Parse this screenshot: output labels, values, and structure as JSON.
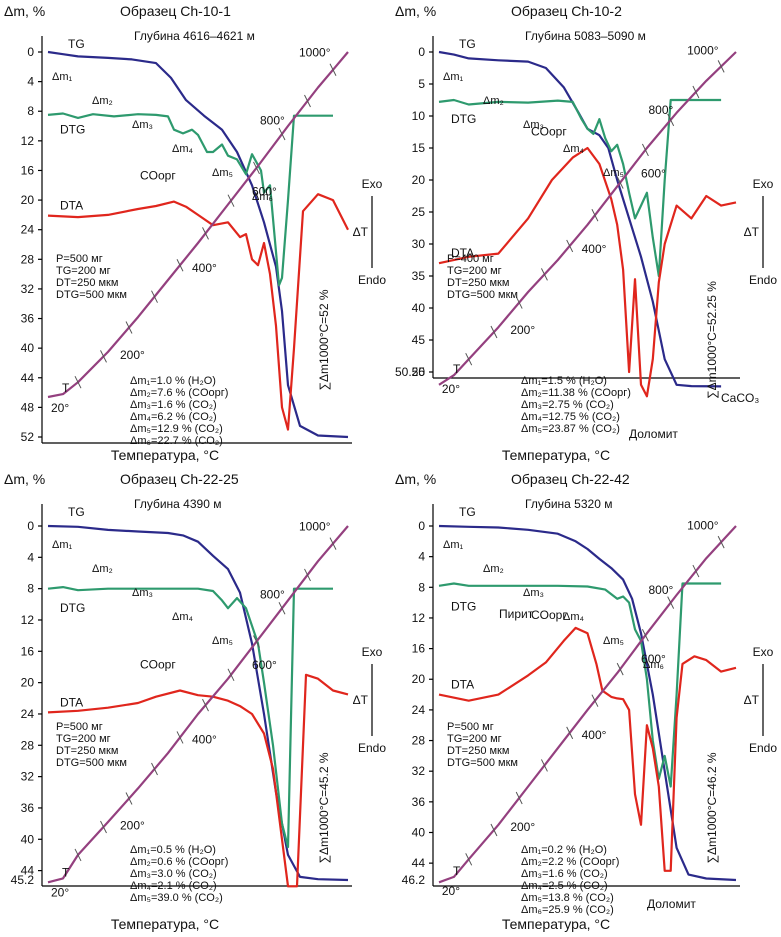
{
  "colors": {
    "TG": "#2b2a8a",
    "DTG": "#2e9a6e",
    "DTA": "#e0261d",
    "T": "#94407f"
  },
  "chart_data": [
    {
      "type": "line",
      "title": "Образец Ch-10-1",
      "depth": "Глубина 4616–4621 м",
      "ylabel": "Δm, %",
      "xlabel": "Температура, °С",
      "yticks": [
        "0",
        "4",
        "8",
        "12",
        "16",
        "20",
        "24",
        "28",
        "32",
        "36",
        "40",
        "44",
        "48",
        "52"
      ],
      "ylim": [
        0,
        52
      ],
      "curve_labels": {
        "TG": "TG",
        "DTG": "DTG",
        "DTA": "DTA",
        "T": "T",
        "CO": "COорг"
      },
      "temp_labels": [
        "20°",
        "200°",
        "400°",
        "600°",
        "800°",
        "1000°"
      ],
      "exo": "Exo",
      "endo": "Endo",
      "dT": "ΔT",
      "params": [
        "P=500 мг",
        "TG=200 мг",
        "DT=250 мкм",
        "DTG=500 мкм"
      ],
      "losses": [
        "Δm₁=1.0 % (H₂O)",
        "Δm₂=7.6 % (COорг)",
        "Δm₃=1.6 % (CO₂)",
        "Δm₄=6.2 % (CO₂)",
        "Δm₅=12.9 % (CO₂)",
        "Δm₆=22.7 % (CO₂)"
      ],
      "step_labels": [
        "Δm₁",
        "Δm₂",
        "Δm₃",
        "Δm₄",
        "Δm₅",
        "Δm₆"
      ],
      "total": "∑Δm1000°C=52 %",
      "extra_labels": [],
      "extra_tick": "",
      "series": [
        {
          "name": "TG",
          "x": [
            0,
            0.05,
            0.1,
            0.2,
            0.28,
            0.36,
            0.41,
            0.46,
            0.52,
            0.58,
            0.63,
            0.68,
            0.72,
            0.76,
            0.78,
            0.8,
            0.84,
            0.9,
            1.0
          ],
          "y": [
            0,
            0.3,
            0.6,
            0.8,
            1.0,
            1.5,
            3.5,
            6.5,
            8.6,
            10.5,
            13.5,
            18,
            23,
            29,
            35,
            45,
            50.5,
            51.8,
            52
          ]
        },
        {
          "name": "DTG",
          "x": [
            0,
            0.05,
            0.1,
            0.15,
            0.22,
            0.3,
            0.36,
            0.4,
            0.42,
            0.45,
            0.48,
            0.5,
            0.53,
            0.55,
            0.58,
            0.6,
            0.63,
            0.66,
            0.68,
            0.71,
            0.72,
            0.74,
            0.76,
            0.77,
            0.78,
            0.8,
            0.82,
            0.86,
            0.95
          ],
          "y": [
            8.5,
            8.3,
            8.9,
            8.4,
            8.7,
            8.4,
            8.5,
            8.7,
            10.5,
            11.0,
            10.5,
            11.2,
            13.5,
            13.5,
            12.5,
            14.0,
            14.5,
            16.5,
            13.8,
            16.0,
            19.0,
            18.0,
            27.0,
            31.5,
            30.5,
            20.0,
            8.6,
            8.6,
            8.6
          ]
        },
        {
          "name": "DTA",
          "x": [
            0,
            0.1,
            0.2,
            0.3,
            0.36,
            0.42,
            0.46,
            0.5,
            0.55,
            0.6,
            0.64,
            0.66,
            0.68,
            0.7,
            0.72,
            0.74,
            0.76,
            0.78,
            0.8,
            0.82,
            0.85,
            0.9,
            0.95,
            1.0
          ],
          "y": [
            22.1,
            22.3,
            22.0,
            21.2,
            20.8,
            20.2,
            20.9,
            22.0,
            23.4,
            23.0,
            25.0,
            24.6,
            28.0,
            28.8,
            25.8,
            30.0,
            37.0,
            48.0,
            51.0,
            40.0,
            21.5,
            19.2,
            20.0,
            24.0
          ]
        },
        {
          "name": "T",
          "x": [
            0,
            0.05,
            0.1,
            0.2,
            0.3,
            0.4,
            0.5,
            0.6,
            0.7,
            0.8,
            0.9,
            0.95,
            1.0
          ],
          "y": [
            46.6,
            46.2,
            44.6,
            40.5,
            35.8,
            30.8,
            25.8,
            20.6,
            15.4,
            10.0,
            4.8,
            2.4,
            0
          ]
        }
      ]
    },
    {
      "type": "line",
      "title": "Образец Ch-10-2",
      "depth": "Глубина 5083–5090 м",
      "ylabel": "Δm, %",
      "xlabel": "Температура, °С",
      "yticks": [
        "0",
        "5",
        "10",
        "15",
        "20",
        "25",
        "30",
        "35",
        "40",
        "45",
        "50"
      ],
      "ylim": [
        0,
        50
      ],
      "curve_labels": {
        "TG": "TG",
        "DTG": "DTG",
        "DTA": "DTA",
        "T": "T",
        "CO": "COорг"
      },
      "temp_labels": [
        "20°",
        "200°",
        "400°",
        "600°",
        "800°",
        "1000°"
      ],
      "exo": "Exo",
      "endo": "Endo",
      "dT": "ΔT",
      "params": [
        "P=400 мг",
        "TG=200 мг",
        "DT=250 мкм",
        "DTG=500 мкм"
      ],
      "losses": [
        "Δm₁=1.5 % (H₂O)",
        "Δm₂=11.38 % (COорг)",
        "Δm₃=2.75 % (CO₂)",
        "Δm₄=12.75 % (CO₂)",
        "Δm₅=23.87 % (CO₂)"
      ],
      "step_labels": [
        "Δm₁",
        "Δm₂",
        "Δm₃",
        "Δm₄",
        "Δm₅"
      ],
      "total": "∑Δm1000°C=52.25 %",
      "extra_labels": [
        "Доломит",
        "CaCO₃"
      ],
      "extra_tick": "50.25",
      "series": [
        {
          "name": "TG",
          "x": [
            0,
            0.05,
            0.1,
            0.2,
            0.3,
            0.36,
            0.42,
            0.47,
            0.5,
            0.54,
            0.57,
            0.6,
            0.64,
            0.68,
            0.72,
            0.76,
            0.8,
            0.85,
            0.95
          ],
          "y": [
            0,
            0.4,
            1.0,
            1.3,
            1.5,
            2.5,
            5.5,
            9.5,
            12.0,
            13.0,
            15.0,
            20.0,
            26.0,
            32.0,
            39.0,
            48.0,
            52.0,
            52.2,
            52.25
          ]
        },
        {
          "name": "DTG",
          "x": [
            0,
            0.05,
            0.1,
            0.2,
            0.3,
            0.4,
            0.45,
            0.48,
            0.5,
            0.52,
            0.54,
            0.56,
            0.58,
            0.6,
            0.62,
            0.64,
            0.66,
            0.68,
            0.7,
            0.72,
            0.74,
            0.76,
            0.78,
            0.85,
            0.95
          ],
          "y": [
            7.8,
            7.5,
            8.2,
            7.8,
            7.9,
            7.6,
            7.8,
            10.5,
            12.0,
            12.8,
            10.5,
            13.5,
            15.5,
            14.5,
            17.5,
            22.0,
            26.0,
            24.0,
            22.0,
            29.0,
            35.0,
            20.0,
            7.5,
            7.5,
            7.5
          ]
        },
        {
          "name": "DTA",
          "x": [
            0,
            0.1,
            0.2,
            0.3,
            0.38,
            0.45,
            0.5,
            0.54,
            0.58,
            0.6,
            0.62,
            0.64,
            0.66,
            0.68,
            0.7,
            0.72,
            0.74,
            0.76,
            0.8,
            0.85,
            0.9,
            0.95,
            1.0
          ],
          "y": [
            33.0,
            32.0,
            31.5,
            26.0,
            20.0,
            16.5,
            15.0,
            17.5,
            23.0,
            27.0,
            34.0,
            50.0,
            35.5,
            52.0,
            53.8,
            48.0,
            36.0,
            30.0,
            24.0,
            26.0,
            22.5,
            24.0,
            23.5
          ]
        },
        {
          "name": "T",
          "x": [
            0,
            0.05,
            0.1,
            0.2,
            0.3,
            0.4,
            0.5,
            0.6,
            0.7,
            0.8,
            0.9,
            1.0
          ],
          "y": [
            52.0,
            50.5,
            48.0,
            43.0,
            37.5,
            32.5,
            27.0,
            21.0,
            15.0,
            9.5,
            4.5,
            0
          ]
        }
      ]
    },
    {
      "type": "line",
      "title": "Образец Ch-22-25",
      "depth": "Глубина 4390 м",
      "ylabel": "Δm, %",
      "xlabel": "Температура, °С",
      "yticks": [
        "0",
        "4",
        "8",
        "12",
        "16",
        "20",
        "24",
        "28",
        "32",
        "36",
        "40",
        "44"
      ],
      "ylim": [
        0,
        45.2
      ],
      "curve_labels": {
        "TG": "TG",
        "DTG": "DTG",
        "DTA": "DTA",
        "T": "T",
        "CO": "COорг"
      },
      "temp_labels": [
        "20°",
        "200°",
        "400°",
        "600°",
        "800°",
        "1000°"
      ],
      "exo": "Exo",
      "endo": "Endo",
      "dT": "ΔT",
      "params": [
        "P=500 мг",
        "TG=200 мг",
        "DT=250 мкм",
        "DTG=500 мкм"
      ],
      "losses": [
        "Δm₁=0.5 % (H₂O)",
        "Δm₂=0.6 % (COорг)",
        "Δm₃=3.0 % (CO₂)",
        "Δm₄=2.1 % (CO₂)",
        "Δm₅=39.0 % (CO₂)"
      ],
      "step_labels": [
        "Δm₁",
        "Δm₂",
        "Δm₃",
        "Δm₄",
        "Δm₅"
      ],
      "total": "∑Δm1000°C=45.2 %",
      "extra_labels": [],
      "extra_tick": "45.2",
      "series": [
        {
          "name": "TG",
          "x": [
            0,
            0.1,
            0.2,
            0.3,
            0.4,
            0.45,
            0.5,
            0.55,
            0.6,
            0.64,
            0.68,
            0.72,
            0.76,
            0.8,
            0.84,
            0.9,
            1.0
          ],
          "y": [
            0,
            0.1,
            0.5,
            0.7,
            0.9,
            1.2,
            2.0,
            3.8,
            5.5,
            8.5,
            15.0,
            24.0,
            34.0,
            42.0,
            44.8,
            45.1,
            45.2
          ]
        },
        {
          "name": "DTG",
          "x": [
            0,
            0.05,
            0.1,
            0.2,
            0.3,
            0.4,
            0.5,
            0.55,
            0.58,
            0.6,
            0.63,
            0.66,
            0.7,
            0.72,
            0.75,
            0.78,
            0.8,
            0.82,
            0.86,
            0.95
          ],
          "y": [
            8.0,
            7.8,
            8.2,
            8.0,
            8.0,
            8.0,
            8.0,
            8.3,
            9.5,
            10.5,
            9.2,
            10.5,
            15.0,
            20.0,
            28.0,
            38.0,
            41.0,
            8.0,
            8.0,
            8.0
          ]
        },
        {
          "name": "DTA",
          "x": [
            0,
            0.1,
            0.2,
            0.3,
            0.36,
            0.44,
            0.5,
            0.55,
            0.6,
            0.64,
            0.68,
            0.72,
            0.75,
            0.78,
            0.8,
            0.83,
            0.86,
            0.9,
            0.95,
            1.0
          ],
          "y": [
            23.8,
            23.6,
            23.2,
            22.6,
            21.8,
            21.0,
            21.6,
            21.8,
            22.3,
            23.0,
            24.0,
            26.5,
            31.0,
            40.0,
            46.0,
            46.0,
            19.0,
            19.5,
            21.0,
            21.5
          ]
        },
        {
          "name": "T",
          "x": [
            0,
            0.05,
            0.1,
            0.2,
            0.3,
            0.4,
            0.5,
            0.6,
            0.7,
            0.8,
            0.9,
            1.0
          ],
          "y": [
            45.5,
            45.0,
            42.0,
            37.8,
            33.5,
            29.0,
            24.0,
            19.5,
            14.5,
            9.5,
            4.5,
            0
          ]
        }
      ]
    },
    {
      "type": "line",
      "title": "Образец Ch-22-42",
      "depth": "Глубина 5320 м",
      "ylabel": "Δm, %",
      "xlabel": "Температура, °С",
      "yticks": [
        "0",
        "4",
        "8",
        "12",
        "16",
        "20",
        "24",
        "28",
        "32",
        "36",
        "40",
        "44"
      ],
      "ylim": [
        0,
        46.2
      ],
      "curve_labels": {
        "TG": "TG",
        "DTG": "DTG",
        "DTA": "DTA",
        "T": "T",
        "CO": "COорг"
      },
      "temp_labels": [
        "20°",
        "200°",
        "400°",
        "600°",
        "800°",
        "1000°"
      ],
      "exo": "Exo",
      "endo": "Endo",
      "dT": "ΔT",
      "params": [
        "P=500 мг",
        "TG=200 мг",
        "DT=250 мкм",
        "DTG=500 мкм"
      ],
      "losses": [
        "Δm₁=0.2 % (H₂O)",
        "Δm₂=2.2 % (COорг)",
        "Δm₃=1.6 % (CO₂)",
        "Δm₄=2.5 % (CO₂)",
        "Δm₅=13.8 % (CO₂)",
        "Δm₆=25.9 % (CO₂)"
      ],
      "step_labels": [
        "Δm₁",
        "Δm₂",
        "Δm₃",
        "Δm₄",
        "Δm₅",
        "Δm₆"
      ],
      "total": "∑Δm1000°C=46.2 %",
      "extra_labels": [
        "Пирит",
        "Доломит"
      ],
      "extra_tick": "46.2",
      "series": [
        {
          "name": "TG",
          "x": [
            0,
            0.1,
            0.2,
            0.3,
            0.4,
            0.46,
            0.5,
            0.54,
            0.58,
            0.62,
            0.65,
            0.68,
            0.72,
            0.76,
            0.8,
            0.84,
            0.9,
            1.0
          ],
          "y": [
            0,
            0.1,
            0.2,
            0.5,
            1.0,
            2.0,
            3.0,
            4.3,
            5.5,
            7.0,
            9.5,
            14.0,
            22.0,
            32.0,
            42.0,
            45.5,
            46.0,
            46.2
          ]
        },
        {
          "name": "DTG",
          "x": [
            0,
            0.05,
            0.1,
            0.2,
            0.3,
            0.4,
            0.5,
            0.56,
            0.6,
            0.62,
            0.64,
            0.66,
            0.68,
            0.7,
            0.72,
            0.74,
            0.76,
            0.78,
            0.8,
            0.82,
            0.86,
            0.95
          ],
          "y": [
            7.8,
            7.5,
            7.8,
            7.8,
            7.8,
            7.8,
            7.9,
            8.3,
            9.5,
            9.2,
            10.0,
            13.5,
            15.0,
            20.0,
            28.0,
            33.0,
            30.0,
            34.0,
            22.0,
            7.5,
            7.5,
            7.5
          ]
        },
        {
          "name": "DTA",
          "x": [
            0,
            0.1,
            0.2,
            0.3,
            0.36,
            0.42,
            0.46,
            0.5,
            0.53,
            0.55,
            0.58,
            0.6,
            0.62,
            0.64,
            0.66,
            0.68,
            0.7,
            0.72,
            0.74,
            0.76,
            0.78,
            0.8,
            0.82,
            0.86,
            0.9,
            0.95,
            1.0
          ],
          "y": [
            22.0,
            22.8,
            22.0,
            19.5,
            17.8,
            15.0,
            13.3,
            14.0,
            18.0,
            21.5,
            22.3,
            22.5,
            22.6,
            24.0,
            35.0,
            39.0,
            26.0,
            29.0,
            34.0,
            45.0,
            45.0,
            25.0,
            18.0,
            17.0,
            17.5,
            19.0,
            18.5
          ]
        },
        {
          "name": "T",
          "x": [
            0,
            0.05,
            0.1,
            0.2,
            0.3,
            0.4,
            0.5,
            0.6,
            0.7,
            0.8,
            0.9,
            1.0
          ],
          "y": [
            46.5,
            45.8,
            43.5,
            39.0,
            34.0,
            29.0,
            24.0,
            19.2,
            14.0,
            9.0,
            4.2,
            0
          ]
        }
      ]
    }
  ]
}
